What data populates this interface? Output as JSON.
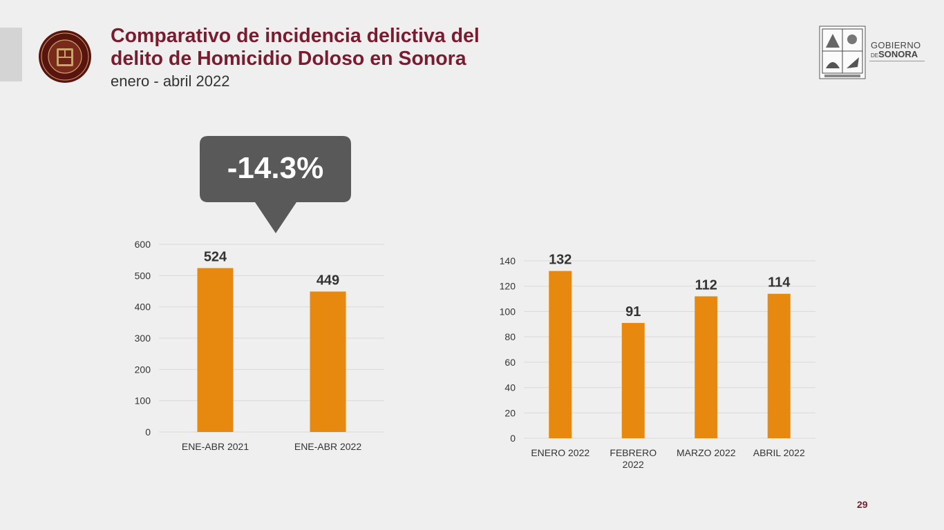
{
  "header": {
    "title_line1": "Comparativo de incidencia delictiva del",
    "title_line2": "delito de Homicidio Doloso en Sonora",
    "subtitle": "enero - abril 2022"
  },
  "government": {
    "line1": "GOBIERNO",
    "line2_prefix": "DE",
    "line2_main": "SONORA"
  },
  "callout": {
    "text": "-14.3%"
  },
  "chart_data": [
    {
      "type": "bar",
      "categories": [
        "ENE-ABR 2021",
        "ENE-ABR 2022"
      ],
      "values": [
        524,
        449
      ],
      "ylim": [
        0,
        600
      ],
      "yticks": [
        0,
        100,
        200,
        300,
        400,
        500,
        600
      ],
      "grid": true,
      "color": "#e8890f"
    },
    {
      "type": "bar",
      "categories": [
        [
          "ENERO 2022"
        ],
        [
          "FEBRERO",
          "2022"
        ],
        [
          "MARZO 2022"
        ],
        [
          "ABRIL 2022"
        ]
      ],
      "values": [
        132,
        91,
        112,
        114
      ],
      "ylim": [
        0,
        140
      ],
      "yticks": [
        0,
        20,
        40,
        60,
        80,
        100,
        120,
        140
      ],
      "grid": true,
      "color": "#e8890f"
    }
  ],
  "page_number": "29",
  "colors": {
    "bar": "#e8890f",
    "title": "#7a1c30",
    "callout_bg": "#595959",
    "background": "#efefef"
  }
}
